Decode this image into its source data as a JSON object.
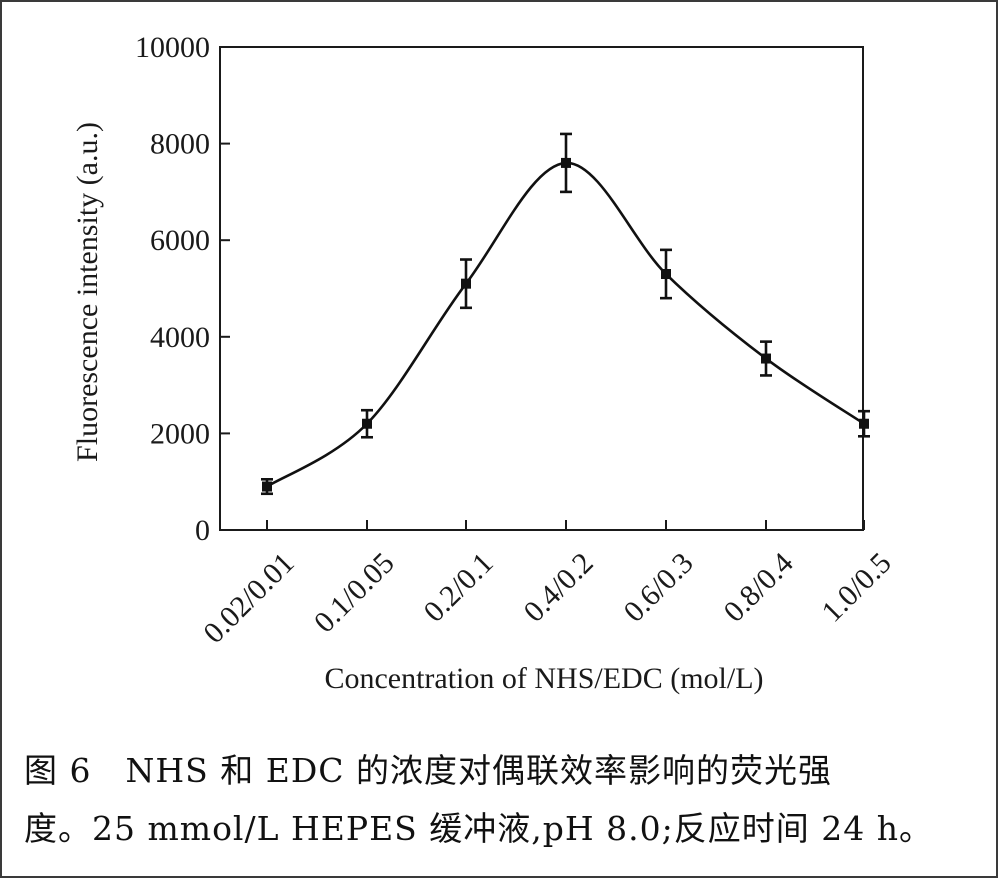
{
  "chart_data": {
    "type": "line",
    "categories": [
      "0.02/0.01",
      "0.1/0.05",
      "0.2/0.1",
      "0.4/0.2",
      "0.6/0.3",
      "0.8/0.4",
      "1.0/0.5"
    ],
    "values": [
      900,
      2200,
      5100,
      7600,
      5300,
      3550,
      2200
    ],
    "errors": [
      150,
      280,
      500,
      600,
      500,
      350,
      260
    ],
    "xlabel": "Concentration of NHS/EDC (mol/L)",
    "ylabel": "Fluorescence  intensity  (a.u.)",
    "ylim": [
      0,
      10000
    ],
    "yticks": [
      "0",
      "2000",
      "4000",
      "6000",
      "8000",
      "10000"
    ],
    "grid": false,
    "legend": "none",
    "marker": "square",
    "line_color": "#111111"
  },
  "caption": {
    "line1": "图 6　NHS 和 EDC 的浓度对偶联效率影响的荧光强",
    "line2": "度。25 mmol/L HEPES 缓冲液,pH 8.0;反应时间 24 h。"
  }
}
